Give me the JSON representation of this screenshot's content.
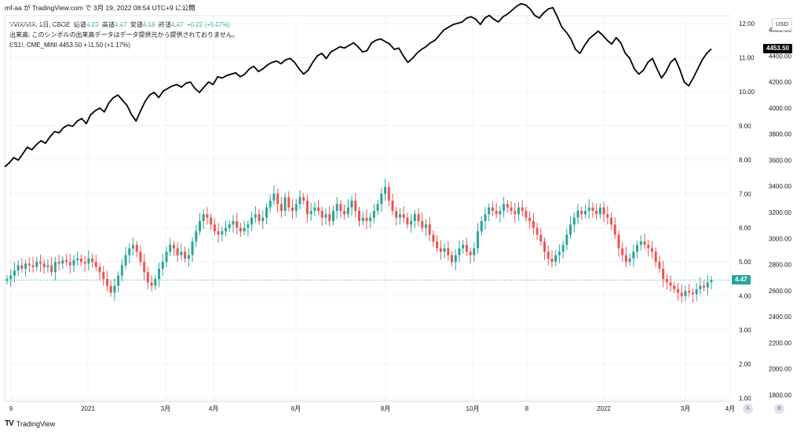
{
  "header": {
    "publish_line": "mf-aa が TradingView.com で 3月 19, 2022 08:54 UTC+9 に公開"
  },
  "legend": {
    "vvix_line_prefix": "VVIX/VIX, 1日, CBOE",
    "vvix_open_label": "始値",
    "vvix_open": "4.23",
    "vvix_high_label": "高値",
    "vvix_high": "4.47",
    "vvix_low_label": "安値",
    "vvix_low": "4.18",
    "vvix_close_label": "終値",
    "vvix_close": "4.47",
    "vvix_change": "+0.22 (+5.07%)",
    "volume_note": "出来高: このシンボルの出来高データはデータ提供元から提供されておりません。",
    "es_line": "ES1!, CME_MINI  4453.50  +51.50 (+1.17%)"
  },
  "footer": {
    "logo": "TV",
    "brand": "TradingView"
  },
  "currency_label": "USD",
  "buttons": {
    "a": "A",
    "b": "B"
  },
  "colors": {
    "up": "#26a69a",
    "down": "#ef5350",
    "line": "#000000",
    "grid": "#f0f3fa"
  },
  "chart_data": {
    "type": "line",
    "subtype": "candlestick + line overlay",
    "grid": true,
    "x_ticks": [
      "9",
      "2021",
      "3月",
      "4月",
      "6月",
      "8月",
      "10月",
      "8",
      "2022",
      "3月",
      "4月"
    ],
    "y_left_ticks": [
      "12.00",
      "11.00",
      "10.00",
      "9.00",
      "8.00",
      "7.00",
      "6.00",
      "5.00",
      "4.00",
      "3.00",
      "2.00",
      "1.00"
    ],
    "y_right_ticks": [
      "4600.00",
      "4400.00",
      "4200.00",
      "4000.00",
      "3800.00",
      "3600.00",
      "3400.00",
      "3200.00",
      "3000.00",
      "2800.00",
      "2600.00",
      "2400.00",
      "2200.00",
      "2000.00",
      "1800.00"
    ],
    "vvix_ylim": [
      1,
      12
    ],
    "es_ylim": [
      1800,
      4600
    ],
    "last_vvix_label": "4.47",
    "last_es_label": "4453.50",
    "series": [
      {
        "kind": "candles",
        "points": [
          4.5,
          4.6,
          4.75,
          4.9,
          4.8,
          4.95,
          4.9,
          4.85,
          5.0,
          4.95,
          4.85,
          4.9,
          4.7,
          5.0,
          4.95,
          5.05,
          5.0,
          4.9,
          5.05,
          5.1,
          5.0,
          4.95,
          5.1,
          5.0,
          4.85,
          4.7,
          4.5,
          4.3,
          4.1,
          4.3,
          4.6,
          4.9,
          5.2,
          5.4,
          5.5,
          5.3,
          5.0,
          4.7,
          4.4,
          4.3,
          4.5,
          4.8,
          5.0,
          5.3,
          5.5,
          5.4,
          5.2,
          5.3,
          5.1,
          5.2,
          5.6,
          5.9,
          6.2,
          6.4,
          6.3,
          6.1,
          5.9,
          5.8,
          5.9,
          6.0,
          6.1,
          6.2,
          6.0,
          5.9,
          6.0,
          6.1,
          6.3,
          6.4,
          6.2,
          6.3,
          6.6,
          6.8,
          7.0,
          6.7,
          6.5,
          6.9,
          6.6,
          6.5,
          6.7,
          6.9,
          6.8,
          6.4,
          6.5,
          6.6,
          6.5,
          6.3,
          6.4,
          6.2,
          6.5,
          6.7,
          6.5,
          6.4,
          6.6,
          6.8,
          6.5,
          6.2,
          6.3,
          6.2,
          6.3,
          6.5,
          6.7,
          7.0,
          7.2,
          6.8,
          6.5,
          6.3,
          6.4,
          6.3,
          6.1,
          6.2,
          6.4,
          6.2,
          6.0,
          6.1,
          5.8,
          5.6,
          5.4,
          5.3,
          5.4,
          5.2,
          5.0,
          5.2,
          5.4,
          5.5,
          5.3,
          5.2,
          5.4,
          5.9,
          6.2,
          6.4,
          6.6,
          6.5,
          6.4,
          6.5,
          6.7,
          6.6,
          6.5,
          6.4,
          6.6,
          6.5,
          6.3,
          6.2,
          6.0,
          5.8,
          5.6,
          5.3,
          5.1,
          5.0,
          5.2,
          5.3,
          5.5,
          5.8,
          6.1,
          6.3,
          6.5,
          6.4,
          6.5,
          6.6,
          6.5,
          6.4,
          6.6,
          6.4,
          6.3,
          6.1,
          5.8,
          5.4,
          5.2,
          5.0,
          5.1,
          5.3,
          5.5,
          5.6,
          5.5,
          5.4,
          5.3,
          5.0,
          4.8,
          4.5,
          4.4,
          4.3,
          4.2,
          4.1,
          4.0,
          4.15,
          4.1,
          4.05,
          4.2,
          4.3,
          4.25,
          4.4,
          4.47
        ],
        "name": "VVIX/VIX"
      },
      {
        "kind": "line",
        "points": [
          3550,
          3580,
          3620,
          3600,
          3650,
          3700,
          3680,
          3720,
          3750,
          3730,
          3780,
          3820,
          3810,
          3850,
          3870,
          3860,
          3900,
          3920,
          3880,
          3950,
          3980,
          4000,
          3970,
          4040,
          4080,
          4100,
          4060,
          4020,
          3950,
          3900,
          3980,
          4050,
          4100,
          4120,
          4080,
          4130,
          4150,
          4170,
          4180,
          4160,
          4190,
          4200,
          4150,
          4120,
          4160,
          4200,
          4180,
          4240,
          4230,
          4250,
          4260,
          4270,
          4240,
          4260,
          4300,
          4320,
          4280,
          4300,
          4330,
          4350,
          4360,
          4340,
          4370,
          4380,
          4350,
          4300,
          4260,
          4290,
          4350,
          4400,
          4420,
          4380,
          4430,
          4450,
          4470,
          4460,
          4480,
          4500,
          4470,
          4430,
          4440,
          4500,
          4520,
          4530,
          4510,
          4490,
          4450,
          4460,
          4400,
          4350,
          4380,
          4420,
          4450,
          4470,
          4500,
          4520,
          4560,
          4600,
          4620,
          4640,
          4650,
          4660,
          4690,
          4700,
          4680,
          4640,
          4690,
          4710,
          4680,
          4660,
          4700,
          4720,
          4750,
          4780,
          4800,
          4790,
          4760,
          4710,
          4690,
          4730,
          4760,
          4770,
          4700,
          4620,
          4580,
          4530,
          4450,
          4420,
          4480,
          4530,
          4560,
          4590,
          4560,
          4520,
          4490,
          4540,
          4500,
          4420,
          4380,
          4300,
          4260,
          4290,
          4350,
          4380,
          4300,
          4230,
          4280,
          4350,
          4380,
          4300,
          4200,
          4170,
          4230,
          4300,
          4370,
          4420,
          4453.5
        ],
        "name": "ES1!"
      }
    ]
  }
}
